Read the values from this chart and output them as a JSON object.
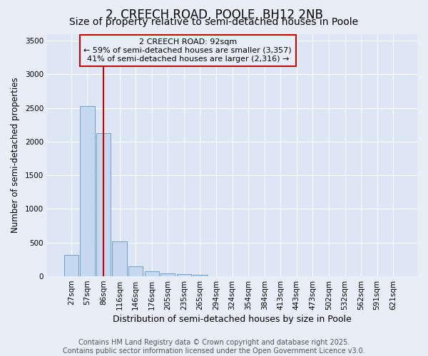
{
  "title": "2, CREECH ROAD, POOLE, BH12 2NB",
  "subtitle": "Size of property relative to semi-detached houses in Poole",
  "xlabel": "Distribution of semi-detached houses by size in Poole",
  "ylabel": "Number of semi-detached properties",
  "categories": [
    "27sqm",
    "57sqm",
    "86sqm",
    "116sqm",
    "146sqm",
    "176sqm",
    "205sqm",
    "235sqm",
    "265sqm",
    "294sqm",
    "324sqm",
    "354sqm",
    "384sqm",
    "413sqm",
    "443sqm",
    "473sqm",
    "502sqm",
    "532sqm",
    "562sqm",
    "591sqm",
    "621sqm"
  ],
  "values": [
    320,
    2530,
    2130,
    520,
    150,
    70,
    40,
    30,
    25,
    0,
    0,
    0,
    0,
    0,
    0,
    0,
    0,
    0,
    0,
    0,
    0
  ],
  "bar_color": "#c5d8f0",
  "bar_edge_color": "#6fa0cc",
  "ylim": [
    0,
    3600
  ],
  "yticks": [
    0,
    500,
    1000,
    1500,
    2000,
    2500,
    3000,
    3500
  ],
  "property_index": 2,
  "property_label": "2 CREECH ROAD: 92sqm",
  "annotation_line1": "← 59% of semi-detached houses are smaller (3,357)",
  "annotation_line2": "41% of semi-detached houses are larger (2,316) →",
  "vline_color": "#cc0000",
  "annotation_box_edgecolor": "#cc0000",
  "footer_line1": "Contains HM Land Registry data © Crown copyright and database right 2025.",
  "footer_line2": "Contains public sector information licensed under the Open Government Licence v3.0.",
  "background_color": "#e8eef8",
  "plot_bg_color": "#dde6f4",
  "grid_color": "#ffffff",
  "title_fontsize": 12,
  "subtitle_fontsize": 10,
  "xlabel_fontsize": 9,
  "ylabel_fontsize": 8.5,
  "tick_fontsize": 7.5,
  "annotation_fontsize": 8,
  "footer_fontsize": 7
}
